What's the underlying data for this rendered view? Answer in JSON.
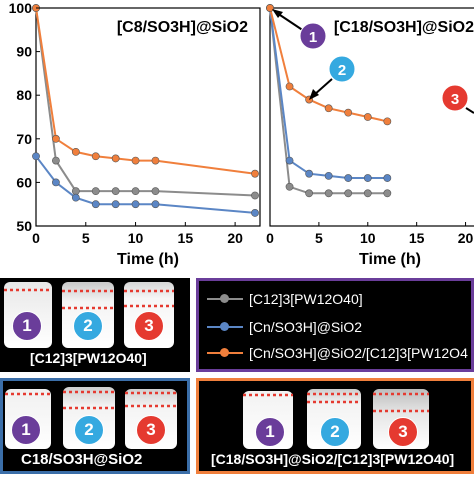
{
  "chart_data": [
    {
      "type": "line",
      "title": "[C8/SO3H]@SiO2",
      "xlabel": "Time (h)",
      "ylabel": "",
      "xlim": [
        0,
        22.5
      ],
      "ylim": [
        50,
        100
      ],
      "xticks": [
        0,
        5,
        10,
        15,
        20
      ],
      "yticks": [
        50,
        60,
        70,
        80,
        90,
        100
      ],
      "series": [
        {
          "id": "grey",
          "x": [
            0,
            2,
            4,
            6,
            8,
            10,
            12,
            22
          ],
          "y": [
            100,
            65,
            58,
            58,
            58,
            58,
            58,
            57
          ]
        },
        {
          "id": "blue",
          "x": [
            0,
            2,
            4,
            6,
            8,
            10,
            12,
            22
          ],
          "y": [
            66,
            60,
            56.5,
            55,
            55,
            55,
            55,
            53
          ]
        },
        {
          "id": "orange",
          "x": [
            0,
            2,
            4,
            6,
            8,
            10,
            12,
            22
          ],
          "y": [
            100,
            70,
            67,
            66,
            65.5,
            65,
            65,
            62
          ]
        }
      ]
    },
    {
      "type": "line",
      "title": "[C18/SO3H]@SiO2",
      "xlabel": "Time (h)",
      "xlim": [
        0,
        22.5
      ],
      "ylim": [
        50,
        100
      ],
      "xticks": [
        0,
        5,
        10,
        15,
        20
      ],
      "series": [
        {
          "id": "grey",
          "x": [
            0,
            2,
            4,
            6,
            8,
            10,
            12
          ],
          "y": [
            100,
            59,
            57.5,
            57.5,
            57.5,
            57.5,
            57.5
          ]
        },
        {
          "id": "blue",
          "x": [
            0,
            2,
            4,
            6,
            8,
            10,
            12
          ],
          "y": [
            100,
            65,
            62,
            61.5,
            61,
            61,
            61
          ]
        },
        {
          "id": "orange",
          "x": [
            0,
            2,
            4,
            6,
            8,
            10,
            12
          ],
          "y": [
            100,
            82,
            79,
            77,
            76,
            75,
            74
          ]
        }
      ],
      "annotations": [
        "1",
        "2",
        "3"
      ]
    }
  ],
  "legend": {
    "items": [
      {
        "label": "[C12]3[PW12O40]",
        "color": "#8c8c8c"
      },
      {
        "label": "[Cn/SO3H]@SiO2",
        "color": "#5b86c5"
      },
      {
        "label": "[Cn/SO3H]@SiO2/[C12]3[PW12O4",
        "color": "#f07f3c"
      }
    ]
  },
  "photo_panels": [
    {
      "label": "[C12]3[PW12O40]",
      "numbers": [
        "1",
        "2",
        "3"
      ]
    },
    {
      "label": "C18/SO3H@SiO2",
      "numbers": [
        "1",
        "2",
        "3"
      ]
    },
    {
      "label": "[C18/SO3H]@SiO2/[C12]3[PW12O40]",
      "numbers": [
        "1",
        "2",
        "3"
      ]
    }
  ],
  "colors": {
    "grey": "#8c8c8c",
    "blue": "#5b86c5",
    "orange": "#f07f3c",
    "num1": "#6a3d9a",
    "num2": "#35a9e0",
    "num3": "#e53a30"
  }
}
